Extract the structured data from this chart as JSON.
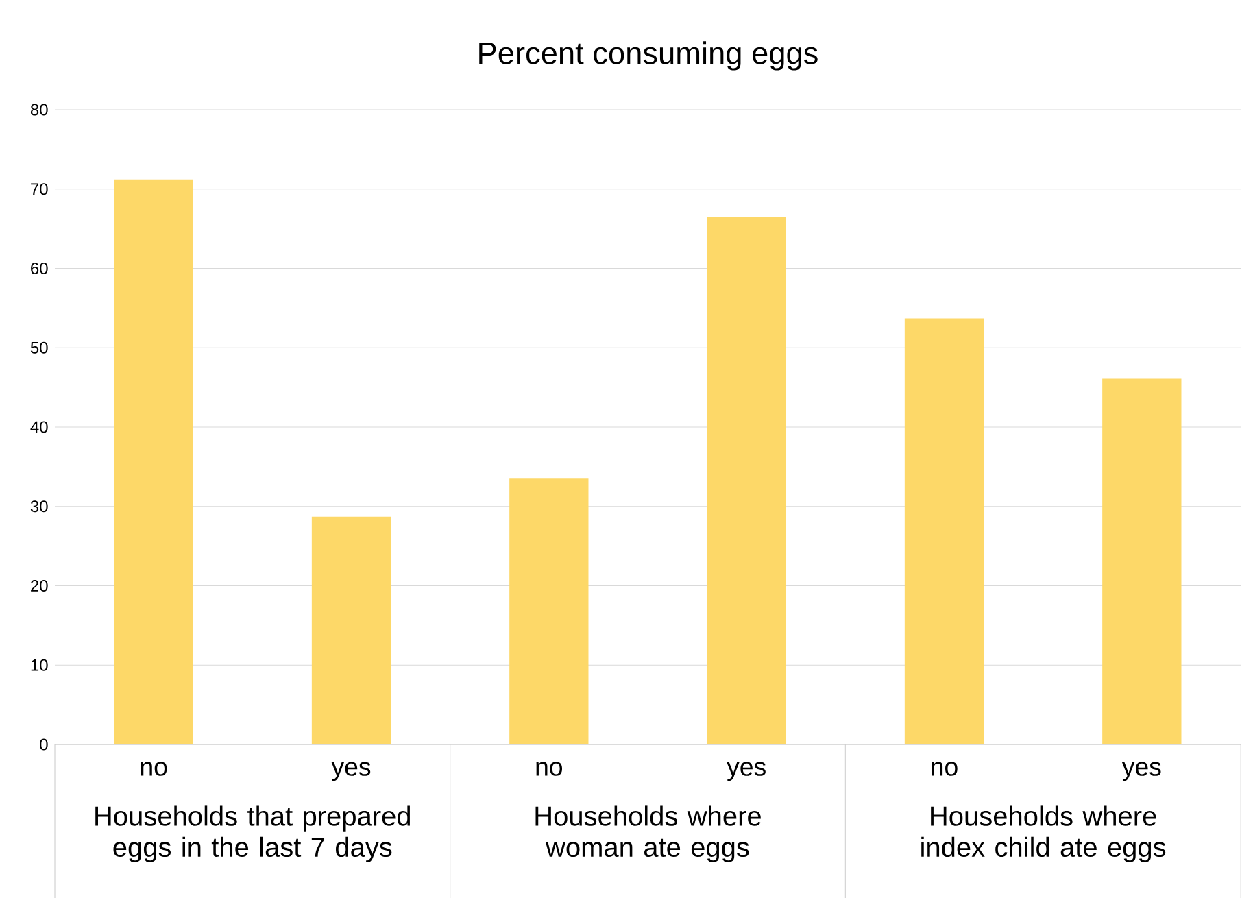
{
  "chart_data": {
    "type": "bar",
    "title": "Percent consuming eggs",
    "categories": [
      "no",
      "yes",
      "no",
      "yes",
      "no",
      "yes"
    ],
    "values": [
      71.2,
      28.7,
      33.5,
      66.5,
      53.7,
      46.1
    ],
    "color": "#fdd868",
    "ylim": [
      0,
      80
    ],
    "yticks": [
      0,
      10,
      20,
      30,
      40,
      50,
      60,
      70,
      80
    ],
    "grid": "y",
    "annotations": [
      "Households that prepared eggs in the last 7 days",
      "Households where woman ate eggs",
      "Households where index child  ate eggs"
    ]
  }
}
